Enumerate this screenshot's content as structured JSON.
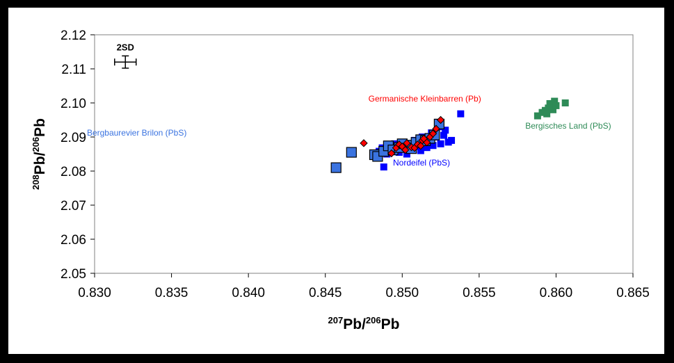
{
  "chart_data": {
    "type": "scatter",
    "xlim": [
      0.83,
      0.865
    ],
    "ylim": [
      2.05,
      2.12
    ],
    "x_ticks": [
      "0.830",
      "0.835",
      "0.840",
      "0.845",
      "0.850",
      "0.855",
      "0.860",
      "0.865"
    ],
    "y_ticks": [
      "2.05",
      "2.06",
      "2.07",
      "2.08",
      "2.09",
      "2.10",
      "2.11",
      "2.12"
    ],
    "xlabel": {
      "sup": "207",
      "base1": "Pb/",
      "sup2": "206",
      "base2": "Pb"
    },
    "ylabel": {
      "sup": "208",
      "base1": "Pb/",
      "sup2": "206",
      "base2": "Pb"
    },
    "grid": false,
    "error_bar": {
      "label": "2SD",
      "x": 0.832,
      "y": 2.112,
      "x_err": 0.0007,
      "y_err": 0.0018
    },
    "series": [
      {
        "name": "Nordeifel (PbS)",
        "color": "#0000ff",
        "marker": "square",
        "points": [
          [
            0.8488,
            2.0812
          ],
          [
            0.8538,
            2.0968
          ],
          [
            0.8532,
            2.089
          ],
          [
            0.8528,
            2.092
          ],
          [
            0.8525,
            2.088
          ],
          [
            0.8522,
            2.09
          ],
          [
            0.852,
            2.0875
          ],
          [
            0.8518,
            2.0895
          ],
          [
            0.8515,
            2.0882
          ],
          [
            0.8512,
            2.086
          ],
          [
            0.851,
            2.0872
          ],
          [
            0.8508,
            2.089
          ],
          [
            0.8505,
            2.0865
          ],
          [
            0.8503,
            2.085
          ],
          [
            0.85,
            2.087
          ],
          [
            0.8498,
            2.0855
          ],
          [
            0.8495,
            2.088
          ],
          [
            0.8492,
            2.086
          ],
          [
            0.849,
            2.085
          ],
          [
            0.8487,
            2.0868
          ],
          [
            0.8485,
            2.0858
          ],
          [
            0.8519,
            2.0912
          ],
          [
            0.8524,
            2.093
          ],
          [
            0.8527,
            2.0905
          ],
          [
            0.853,
            2.0885
          ],
          [
            0.8513,
            2.09
          ],
          [
            0.8509,
            2.0883
          ],
          [
            0.8501,
            2.0876
          ],
          [
            0.8496,
            2.0866
          ],
          [
            0.8516,
            2.0869
          ]
        ]
      },
      {
        "name": "Bergbaurevier Brilon (PbS)",
        "color": "#3a73e0",
        "marker": "square-outline",
        "points": [
          [
            0.8457,
            2.081
          ],
          [
            0.8467,
            2.0855
          ],
          [
            0.8482,
            2.0848
          ],
          [
            0.8484,
            2.0843
          ],
          [
            0.8488,
            2.0858
          ],
          [
            0.8491,
            2.0874
          ],
          [
            0.8494,
            2.0862
          ],
          [
            0.8498,
            2.0869
          ],
          [
            0.8503,
            2.0876
          ],
          [
            0.8506,
            2.0866
          ],
          [
            0.8509,
            2.0884
          ],
          [
            0.8512,
            2.0892
          ],
          [
            0.8515,
            2.0889
          ],
          [
            0.8518,
            2.0896
          ],
          [
            0.8521,
            2.0906
          ],
          [
            0.8524,
            2.0938
          ],
          [
            0.85,
            2.088
          ]
        ]
      },
      {
        "name": "Germanische Kleinbarren (Pb)",
        "color": "#ff0000",
        "marker": "diamond",
        "points": [
          [
            0.8475,
            2.0882
          ],
          [
            0.8493,
            2.0852
          ],
          [
            0.8496,
            2.0868
          ],
          [
            0.8498,
            2.0878
          ],
          [
            0.85,
            2.0872
          ],
          [
            0.8503,
            2.0882
          ],
          [
            0.8506,
            2.087
          ],
          [
            0.8508,
            2.0868
          ],
          [
            0.851,
            2.0878
          ],
          [
            0.8512,
            2.0874
          ],
          [
            0.8513,
            2.089
          ],
          [
            0.8516,
            2.0884
          ],
          [
            0.8518,
            2.09
          ],
          [
            0.852,
            2.091
          ],
          [
            0.8522,
            2.0924
          ],
          [
            0.8525,
            2.095
          ],
          [
            0.8502,
            2.0862
          ],
          [
            0.8514,
            2.0895
          ]
        ]
      },
      {
        "name": "Bergisches Land (PbS)",
        "color": "#2e8b57",
        "marker": "square",
        "points": [
          [
            0.8588,
            2.0962
          ],
          [
            0.8591,
            2.0972
          ],
          [
            0.8593,
            2.0978
          ],
          [
            0.8595,
            2.0985
          ],
          [
            0.8594,
            2.0968
          ],
          [
            0.8597,
            2.099
          ],
          [
            0.8596,
            2.0998
          ],
          [
            0.8599,
            2.1005
          ],
          [
            0.8598,
            2.098
          ],
          [
            0.86,
            2.0992
          ],
          [
            0.8606,
            2.1
          ]
        ]
      }
    ],
    "annotations": [
      {
        "text": "Germanische Kleinbarren (Pb)",
        "color": "#ff0000",
        "x": 0.8478,
        "y": 2.1004,
        "anchor": "start"
      },
      {
        "text": "Bergbaurevier Brilon (PbS)",
        "color": "#3a73e0",
        "x": 0.8295,
        "y": 2.0904,
        "anchor": "start"
      },
      {
        "text": "Nordeifel (PbS)",
        "color": "#0000ff",
        "x": 0.8494,
        "y": 2.0816,
        "anchor": "start"
      },
      {
        "text": "Bergisches Land (PbS)",
        "color": "#2e8b57",
        "x": 0.858,
        "y": 2.0924,
        "anchor": "start"
      }
    ]
  }
}
